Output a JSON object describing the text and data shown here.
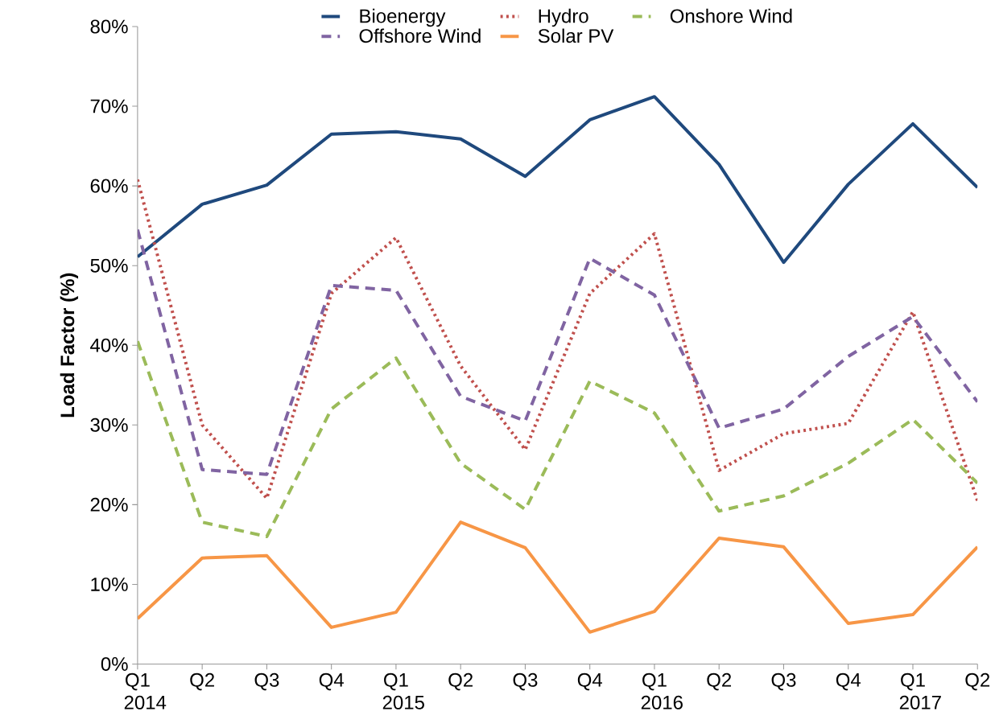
{
  "chart_data": {
    "type": "line",
    "ylabel": "Load Factor (%)",
    "categories": [
      "Q1 2014",
      "Q2",
      "Q3",
      "Q4",
      "Q1 2015",
      "Q2",
      "Q3",
      "Q4",
      "Q1 2016",
      "Q2",
      "Q3",
      "Q4",
      "Q1 2017",
      "Q2"
    ],
    "ylim": [
      0,
      80
    ],
    "yticks": [
      {
        "value": 0,
        "label": "0%"
      },
      {
        "value": 10,
        "label": "10%"
      },
      {
        "value": 20,
        "label": "20%"
      },
      {
        "value": 30,
        "label": "30%"
      },
      {
        "value": 40,
        "label": "40%"
      },
      {
        "value": 50,
        "label": "50%"
      },
      {
        "value": 60,
        "label": "60%"
      },
      {
        "value": 70,
        "label": "70%"
      },
      {
        "value": 80,
        "label": "80%"
      }
    ],
    "grid": false,
    "legend": "top",
    "series": [
      {
        "name": "Bioenergy",
        "color": "#1f497d",
        "line_style": "solid",
        "values": [
          51.1,
          57.7,
          60.1,
          66.5,
          66.8,
          65.9,
          61.2,
          68.3,
          71.2,
          62.7,
          50.4,
          60.2,
          67.8,
          59.8
        ]
      },
      {
        "name": "Hydro",
        "color": "#c0504d",
        "line_style": "dotted",
        "values": [
          60.8,
          30.0,
          20.8,
          46.5,
          53.5,
          37.4,
          26.9,
          46.5,
          54.0,
          24.3,
          28.9,
          30.2,
          44.2,
          20.5
        ]
      },
      {
        "name": "Onshore Wind",
        "color": "#9bbb59",
        "line_style": "dashed",
        "values": [
          40.5,
          17.8,
          16.0,
          32.0,
          38.4,
          25.2,
          19.4,
          35.5,
          31.5,
          19.2,
          21.1,
          25.2,
          30.7,
          22.7
        ]
      },
      {
        "name": "Offshore Wind",
        "color": "#8064a2",
        "line_style": "dashed",
        "values": [
          54.5,
          24.4,
          23.8,
          47.5,
          46.9,
          33.6,
          30.5,
          50.9,
          46.3,
          29.6,
          32.0,
          38.6,
          43.6,
          32.9
        ]
      },
      {
        "name": "Solar PV",
        "color": "#f79646",
        "line_style": "solid",
        "values": [
          5.7,
          13.3,
          13.6,
          4.6,
          6.5,
          17.8,
          14.6,
          4.0,
          6.6,
          15.8,
          14.7,
          5.1,
          6.2,
          14.7
        ]
      }
    ]
  }
}
